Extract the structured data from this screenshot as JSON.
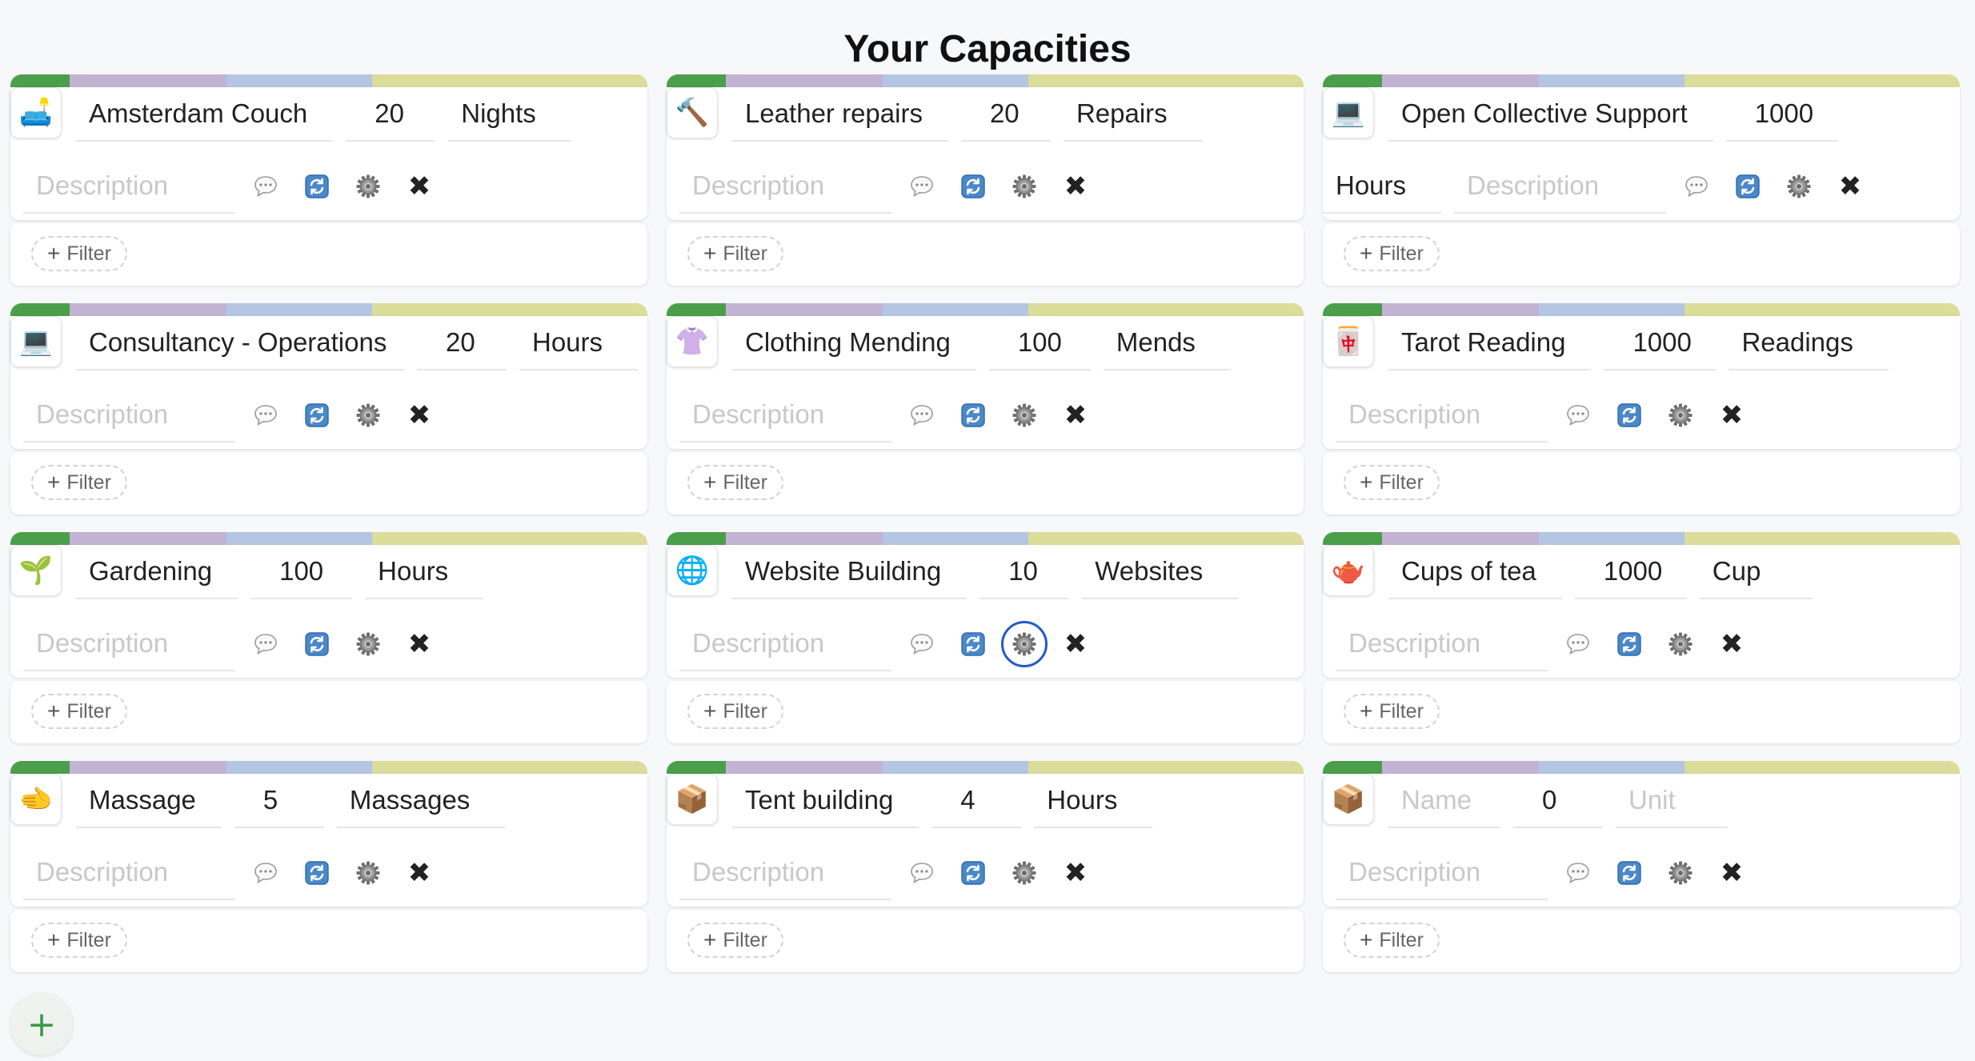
{
  "page": {
    "title": "Your Capacities",
    "add_label": "+"
  },
  "stripe_colors": [
    "#4c9f4a",
    "#c3b3d3",
    "#b4c6e3",
    "#dcdc9b"
  ],
  "actions": {
    "filter_label": "Filter",
    "filter_plus": "+"
  },
  "placeholders": {
    "name": "Name",
    "unit": "Unit",
    "description": "Description"
  },
  "icons": {
    "comment": "speech-bubble-icon",
    "refresh": "refresh-icon",
    "settings": "gear-icon",
    "delete": "close-icon",
    "close_glyph": "✖"
  },
  "capacities": [
    {
      "emoji": "🛋️",
      "icon_name": "couch-icon",
      "name": "Amsterdam Couch",
      "quantity": "20",
      "unit": "Nights",
      "description": ""
    },
    {
      "emoji": "🔨",
      "icon_name": "hammer-icon",
      "name": "Leather repairs",
      "quantity": "20",
      "unit": "Repairs",
      "description": ""
    },
    {
      "emoji": "💻",
      "icon_name": "laptop-icon",
      "name": "Open Collective Support",
      "quantity": "1000",
      "unit": "Hours",
      "description": ""
    },
    {
      "emoji": "💻",
      "icon_name": "laptop-icon",
      "name": "Consultancy - Operations",
      "quantity": "20",
      "unit": "Hours",
      "description": ""
    },
    {
      "emoji": "👚",
      "icon_name": "blouse-icon",
      "name": "Clothing Mending",
      "quantity": "100",
      "unit": "Mends",
      "description": ""
    },
    {
      "emoji": "🀄",
      "icon_name": "card-icon",
      "name": "Tarot Reading",
      "quantity": "1000",
      "unit": "Readings",
      "description": ""
    },
    {
      "emoji": "🌱",
      "icon_name": "seedling-icon",
      "name": "Gardening",
      "quantity": "100",
      "unit": "Hours",
      "description": ""
    },
    {
      "emoji": "🌐",
      "icon_name": "globe-icon",
      "name": "Website Building",
      "quantity": "10",
      "unit": "Websites",
      "description": "",
      "settings_focused": true
    },
    {
      "emoji": "🫖",
      "icon_name": "teapot-icon",
      "name": "Cups of tea",
      "quantity": "1000",
      "unit": "Cup",
      "description": ""
    },
    {
      "emoji": "🫲",
      "icon_name": "hand-icon",
      "name": "Massage",
      "quantity": "5",
      "unit": "Massages",
      "description": ""
    },
    {
      "emoji": "📦",
      "icon_name": "package-icon",
      "name": "Tent building",
      "quantity": "4",
      "unit": "Hours",
      "description": ""
    },
    {
      "emoji": "📦",
      "icon_name": "package-icon",
      "name": "",
      "quantity": "0",
      "unit": "",
      "description": ""
    }
  ]
}
